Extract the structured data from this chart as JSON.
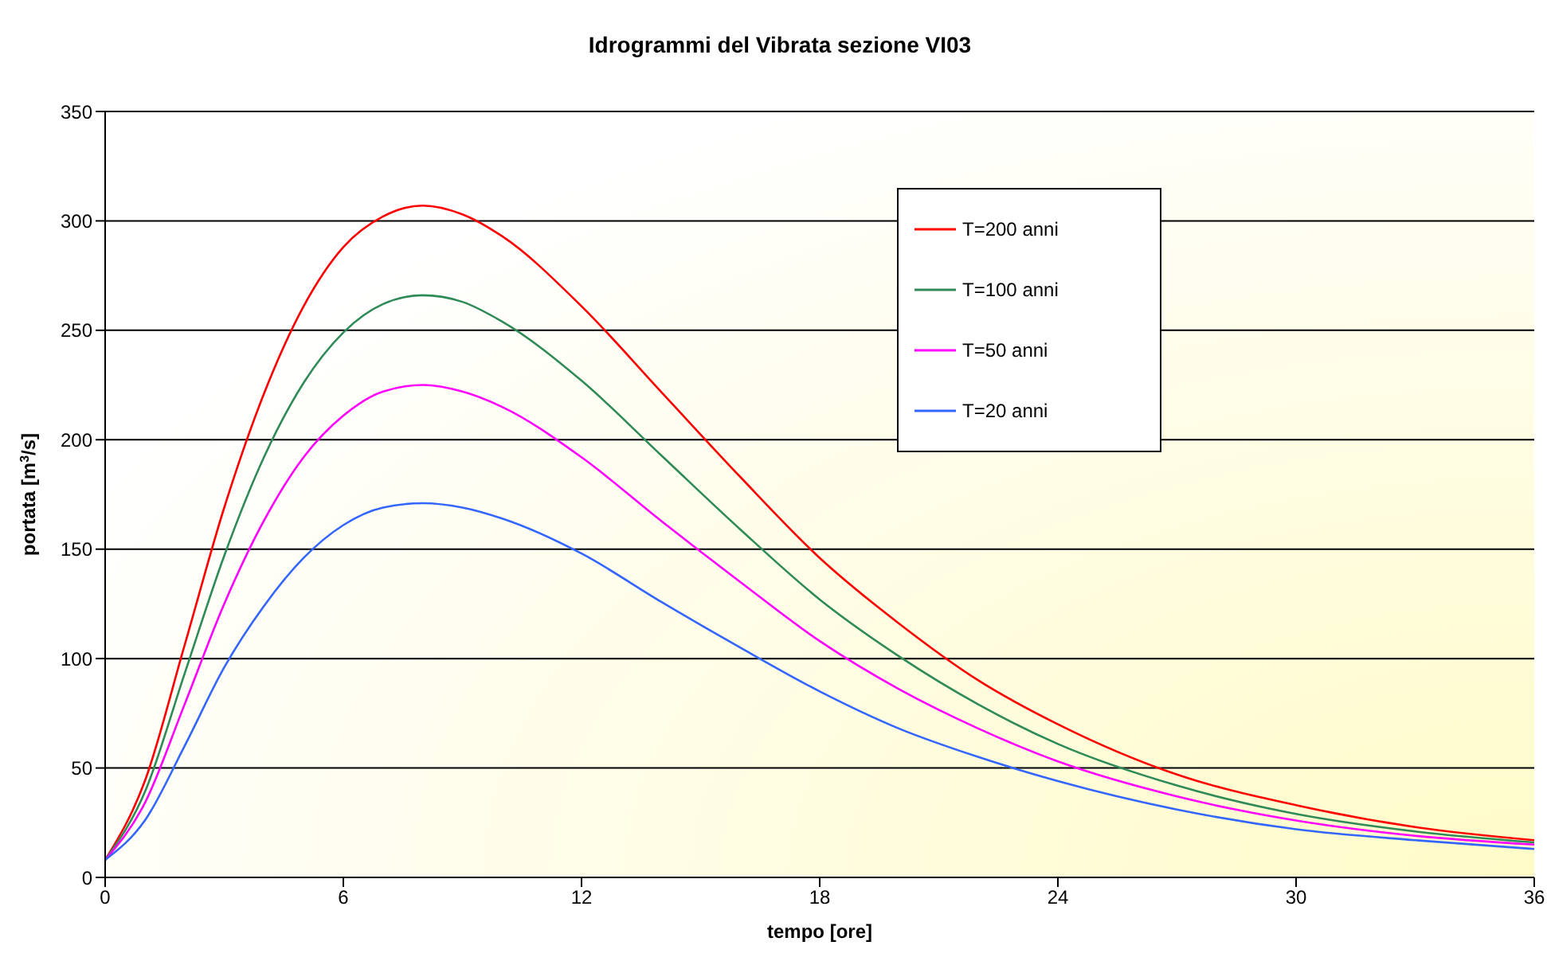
{
  "chart_data": {
    "type": "line",
    "title": "Idrogrammi del Vibrata sezione VI03",
    "xlabel": "tempo [ore]",
    "ylabel": "portata [m$^{3}$/s]",
    "x": [
      0,
      1,
      2,
      3,
      4,
      5,
      6,
      7,
      8,
      9,
      10,
      12,
      14,
      16,
      18,
      20,
      22,
      24,
      27,
      30,
      33,
      36
    ],
    "series": [
      {
        "name": "T=200 anni",
        "color": "#ff0000",
        "values": [
          8,
          44,
          106,
          169,
          221,
          261,
          288,
          302,
          307,
          303,
          293,
          261,
          222,
          183,
          146,
          116,
          90,
          70,
          47,
          33,
          23,
          17
        ]
      },
      {
        "name": "T=100 anni",
        "color": "#2e8b57",
        "values": [
          8,
          39,
          93,
          147,
          192,
          226,
          249,
          262,
          266,
          263,
          254,
          227,
          193,
          159,
          127,
          101,
          79,
          61,
          42,
          29,
          21,
          16
        ]
      },
      {
        "name": "T=50 anni",
        "color": "#ff00ff",
        "values": [
          8,
          34,
          79,
          125,
          163,
          192,
          211,
          222,
          225,
          222,
          215,
          192,
          163,
          135,
          108,
          86,
          68,
          53,
          37,
          26,
          19,
          15
        ]
      },
      {
        "name": "T=20 anni",
        "color": "#3366ff",
        "values": [
          8,
          26,
          60,
          96,
          124,
          146,
          161,
          169,
          171,
          169,
          164,
          148,
          126,
          105,
          85,
          68,
          55,
          44,
          31,
          22,
          17,
          13
        ]
      }
    ],
    "xlim": [
      0,
      36
    ],
    "xticks": [
      0,
      6,
      12,
      18,
      24,
      30,
      36
    ],
    "ylim": [
      0,
      350
    ],
    "yticks": [
      0,
      50,
      100,
      150,
      200,
      250,
      300,
      350
    ],
    "grid": "y",
    "legend": "top right",
    "marker": "none",
    "line_style": "solid"
  }
}
